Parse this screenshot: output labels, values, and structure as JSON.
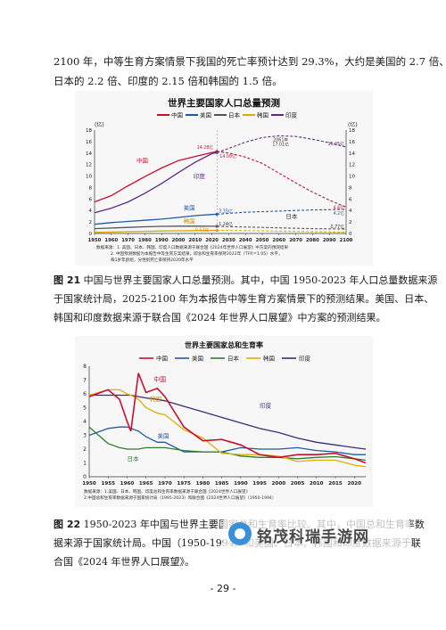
{
  "paragraph_top": {
    "lines": [
      "2100 年，中等生育方案情景下我国的死亡率预计达到 29.3%，大约是美国的 2.7 倍、",
      "日本的 2.2 倍、印度的 2.15 倍和韩国的 1.5 倍。"
    ]
  },
  "figure1": {
    "title": "世界主要国家人口总量预测",
    "legend": [
      {
        "name": "中国",
        "color": "#c8102e"
      },
      {
        "name": "美国",
        "color": "#1f5aa6"
      },
      {
        "name": "日本",
        "color": "#555555"
      },
      {
        "name": "韩国",
        "color": "#e0a800"
      },
      {
        "name": "印度",
        "color": "#5b2a86"
      }
    ],
    "unit_left": "(亿)",
    "unit_right": "(亿)",
    "y_ticks": [
      "0",
      "2",
      "4",
      "6",
      "8",
      "10",
      "12",
      "14",
      "16",
      "18"
    ],
    "x_ticks": [
      "1950",
      "1960",
      "1970",
      "1980",
      "1990",
      "2000",
      "2010",
      "2020",
      "2030",
      "2040",
      "2050",
      "2060",
      "2070",
      "2080",
      "2090",
      "2100"
    ],
    "line_labels": {
      "china": "中国",
      "india": "印度",
      "usa": "美国",
      "japan": "日本",
      "korea": "韩国"
    },
    "annotations": {
      "china_2023": "14.28亿",
      "india_2023": "14.09亿",
      "india_peak_year": "2061年",
      "india_peak": "17.01亿",
      "india_2100": "15.05亿",
      "china_2100": "4.6亿",
      "usa_2023": "3.35亿",
      "usa_2100": "4.2亿",
      "japan_2023": "1.24亿",
      "korea_2023": "0.52亿",
      "japan_2100": "0.77亿"
    },
    "notes": [
      "数据来源：1. 美国、日本、韩国、印度人口数据来源于联合国《2024年世界人口展望》中方案的预测结果",
      "2. 中国预测数据为本报告中等生育方案结果，即总和生育率保持2022年（TFR＝1.05）水平，",
      "每1岁年龄组，分性别死亡率保持2020年水平"
    ]
  },
  "caption1": {
    "lines": [
      {
        "label": "图 21",
        "text": " 中国与世界主要国家人口总量预测。其中，中国 1950-2023 年人口总量数据来源"
      },
      {
        "label": "",
        "text": "于国家统计局，2025-2100 年为本报告中等生育方案情景下的预测结果。美国、日本、"
      },
      {
        "label": "",
        "text": "韩国和印度数据来源于联合国《2024 年世界人口展望》中方案的预测结果。"
      }
    ]
  },
  "figure2": {
    "title": "世界主要国家总和生育率",
    "legend": [
      {
        "name": "中国",
        "color": "#c8102e"
      },
      {
        "name": "美国",
        "color": "#1f5aa6"
      },
      {
        "name": "日本",
        "color": "#2e7d32"
      },
      {
        "name": "韩国",
        "color": "#e0b000"
      },
      {
        "name": "印度",
        "color": "#3d2b7a"
      }
    ],
    "y_ticks": [
      "0",
      "1",
      "2",
      "3",
      "4",
      "5",
      "6",
      "7",
      "8"
    ],
    "x_ticks": [
      "1950",
      "1955",
      "1960",
      "1965",
      "1970",
      "1975",
      "1980",
      "1985",
      "1990",
      "1995",
      "2000",
      "2005",
      "2010",
      "2015",
      "2020"
    ],
    "line_labels": {
      "china": "中国",
      "india": "印度",
      "usa": "美国",
      "japan": "日本",
      "korea": "韩国"
    },
    "notes": [
      "数据来源：1.美国、日本、韩国、印度总和生育率数据来源于联合国《2024世界人口展望》",
      "2.中国总和生育率数据来源于国家统计局（1995-2023）和联合国《2024世界人口展望》（1950-1994）"
    ]
  },
  "caption2": {
    "lines": [
      {
        "label": "图 22",
        "text": " 1950-2023 年中国与世界主要国家总和生育率比较。其中，中国总和生育率数"
      },
      {
        "label": "",
        "text": "据来源于国家统计局。中国（1950-1994）和美国、日本、韩国和印度数据来源于联"
      },
      {
        "label": "",
        "text": "合国《2024 年世界人口展望》。"
      }
    ]
  },
  "watermark": {
    "text": "铭茂科瑞手游网"
  },
  "page_number": "- 29 -",
  "chart_data": [
    {
      "type": "line",
      "title": "世界主要国家人口总量预测",
      "xlabel": "",
      "ylabel": "(亿)",
      "xlim": [
        1950,
        2100
      ],
      "ylim": [
        0,
        18
      ],
      "grid": false,
      "legend_position": "top",
      "x": [
        1950,
        1960,
        1970,
        1980,
        1990,
        2000,
        2010,
        2020,
        2023,
        2030,
        2040,
        2050,
        2060,
        2070,
        2080,
        2090,
        2100
      ],
      "series": [
        {
          "name": "中国",
          "values": [
            5.5,
            6.6,
            8.3,
            9.9,
            11.4,
            12.7,
            13.4,
            14.1,
            14.28,
            14.0,
            13.3,
            12.2,
            10.5,
            8.8,
            7.2,
            5.8,
            4.6
          ]
        },
        {
          "name": "印度",
          "values": [
            3.6,
            4.4,
            5.5,
            7.0,
            8.7,
            10.6,
            12.4,
            13.9,
            14.09,
            14.8,
            15.9,
            16.7,
            17.0,
            16.9,
            16.4,
            15.8,
            15.05
          ]
        },
        {
          "name": "美国",
          "values": [
            1.6,
            1.9,
            2.1,
            2.3,
            2.5,
            2.8,
            3.1,
            3.3,
            3.35,
            3.5,
            3.7,
            3.8,
            3.9,
            4.0,
            4.1,
            4.15,
            4.2
          ]
        },
        {
          "name": "日本",
          "values": [
            0.84,
            0.94,
            1.05,
            1.17,
            1.24,
            1.27,
            1.28,
            1.26,
            1.24,
            1.19,
            1.12,
            1.05,
            0.97,
            0.9,
            0.84,
            0.8,
            0.77
          ]
        },
        {
          "name": "韩国",
          "values": [
            0.2,
            0.25,
            0.32,
            0.38,
            0.43,
            0.47,
            0.49,
            0.52,
            0.52,
            0.52,
            0.5,
            0.46,
            0.41,
            0.36,
            0.3,
            0.26,
            0.22
          ]
        }
      ]
    },
    {
      "type": "line",
      "title": "世界主要国家总和生育率",
      "xlabel": "",
      "ylabel": "",
      "xlim": [
        1950,
        2023
      ],
      "ylim": [
        0,
        8
      ],
      "grid": false,
      "legend_position": "top",
      "x": [
        1950,
        1955,
        1958,
        1960,
        1961,
        1963,
        1965,
        1968,
        1970,
        1975,
        1980,
        1985,
        1990,
        1995,
        2000,
        2005,
        2010,
        2015,
        2020,
        2023
      ],
      "series": [
        {
          "name": "中国",
          "values": [
            5.8,
            6.3,
            5.6,
            4.0,
            3.3,
            7.5,
            6.1,
            6.4,
            5.8,
            3.6,
            2.6,
            2.7,
            2.3,
            1.6,
            1.4,
            1.6,
            1.6,
            1.7,
            1.3,
            1.0
          ]
        },
        {
          "name": "印度",
          "values": [
            5.9,
            5.9,
            5.9,
            5.9,
            5.9,
            5.8,
            5.7,
            5.6,
            5.5,
            5.1,
            4.7,
            4.3,
            3.9,
            3.5,
            3.2,
            2.8,
            2.5,
            2.3,
            2.1,
            2.0
          ]
        },
        {
          "name": "美国",
          "values": [
            3.0,
            3.5,
            3.6,
            3.6,
            3.5,
            3.3,
            2.9,
            2.5,
            2.5,
            1.8,
            1.8,
            1.8,
            2.1,
            2.0,
            2.0,
            2.1,
            1.9,
            1.8,
            1.6,
            1.6
          ]
        },
        {
          "name": "日本",
          "values": [
            3.6,
            2.4,
            2.1,
            2.0,
            2.0,
            2.0,
            2.1,
            2.1,
            2.1,
            1.9,
            1.8,
            1.8,
            1.5,
            1.4,
            1.4,
            1.3,
            1.4,
            1.45,
            1.3,
            1.2
          ]
        },
        {
          "name": "韩国",
          "values": [
            5.9,
            6.3,
            6.3,
            6.0,
            5.9,
            5.6,
            5.0,
            4.6,
            4.5,
            3.4,
            2.8,
            1.7,
            1.6,
            1.6,
            1.5,
            1.1,
            1.2,
            1.2,
            0.84,
            0.72
          ]
        }
      ]
    }
  ]
}
